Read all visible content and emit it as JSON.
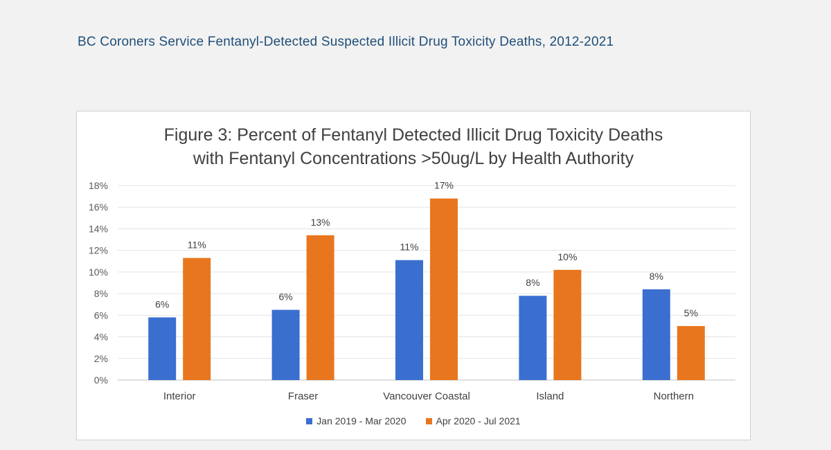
{
  "header": {
    "text": "BC Coroners Service Fentanyl-Detected Suspected Illicit Drug Toxicity Deaths, 2012-2021"
  },
  "chart_data": {
    "type": "bar",
    "title": "Figure 3: Percent of Fentanyl Detected Illicit Drug Toxicity Deaths",
    "subtitle": "with Fentanyl Concentrations >50ug/L by Health Authority",
    "categories": [
      "Interior",
      "Fraser",
      "Vancouver Coastal",
      "Island",
      "Northern"
    ],
    "series": [
      {
        "name": "Jan 2019 - Mar 2020",
        "values": [
          5.8,
          6.5,
          11.1,
          7.8,
          8.4
        ],
        "labels": [
          "6%",
          "6%",
          "11%",
          "8%",
          "8%"
        ],
        "color": "#3a6fd0"
      },
      {
        "name": "Apr 2020 - Jul 2021",
        "values": [
          11.3,
          13.4,
          16.8,
          10.2,
          5.0
        ],
        "labels": [
          "11%",
          "13%",
          "17%",
          "10%",
          "5%"
        ],
        "color": "#e8761e"
      }
    ],
    "yticks": [
      "0%",
      "2%",
      "4%",
      "6%",
      "8%",
      "10%",
      "12%",
      "14%",
      "16%",
      "18%"
    ],
    "ylim": [
      0,
      18
    ],
    "grid": true,
    "legend_position": "bottom"
  }
}
